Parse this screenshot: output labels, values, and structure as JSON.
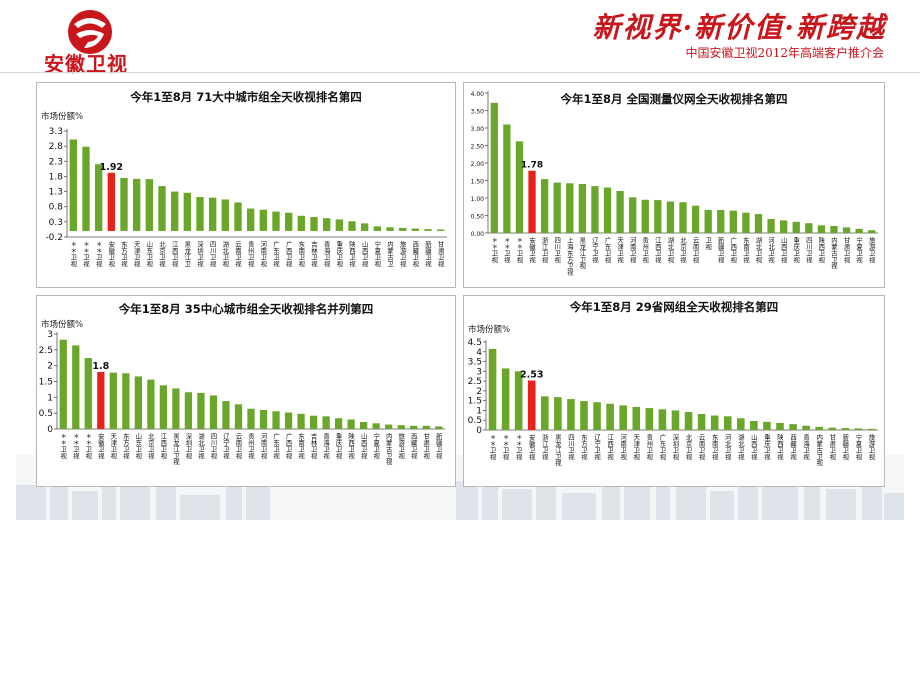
{
  "brand": {
    "logo_text": "安徽卫视",
    "slogan": "新视界·新价值·新跨越",
    "event": "中国安徽卫视2012年高端客户推介会",
    "highlight_color": "#e8221b",
    "bar_color": "#6aa629"
  },
  "chart_data": [
    {
      "type": "bar",
      "title": "今年1至8月  71大中城市组全天收视排名第四",
      "ylabel": "市场份额%",
      "ylim": [
        -0.2,
        3.3
      ],
      "yticks": [
        -0.2,
        0.3,
        0.8,
        1.3,
        1.8,
        2.3,
        2.8,
        3.3
      ],
      "ytick_labels": [
        "-0.2",
        "0.3",
        "0.8",
        "1.3",
        "1.8",
        "2.3",
        "2.8",
        "3.3"
      ],
      "highlight_index": 3,
      "highlight_label": "1.92",
      "categories": [
        "＊＊卫视",
        "＊＊卫视",
        "＊＊卫视",
        "安徽卫视",
        "东方卫视",
        "天津卫视",
        "山东卫视",
        "北京卫视",
        "江西卫视",
        "黑龙江卫",
        "深圳卫视",
        "四川卫视",
        "湖北卫视",
        "云南卫视",
        "贵州卫视",
        "河南卫视",
        "广东卫视",
        "广西卫视",
        "东南卫视",
        "吉林卫视",
        "青海卫视",
        "重庆卫视",
        "陕西卫视",
        "山西卫视",
        "宁夏卫视",
        "内蒙古卫",
        "旅游卫视",
        "西藏卫视",
        "新疆卫视",
        "甘肃卫视"
      ],
      "values": [
        3.02,
        2.78,
        2.2,
        1.92,
        1.75,
        1.72,
        1.71,
        1.48,
        1.3,
        1.26,
        1.12,
        1.1,
        1.04,
        0.94,
        0.74,
        0.7,
        0.64,
        0.6,
        0.5,
        0.46,
        0.42,
        0.38,
        0.32,
        0.25,
        0.15,
        0.12,
        0.1,
        0.08,
        0.06,
        0.05
      ]
    },
    {
      "type": "bar",
      "title": "今年1至8月   全国测量仪网全天收视排名第四",
      "ylim": [
        0,
        4
      ],
      "yticks": [
        0,
        0.5,
        1,
        1.5,
        2,
        2.5,
        3,
        3.5,
        4
      ],
      "ytick_labels": [
        "0.00",
        "0.50",
        "1.00",
        "1.50",
        "2.00",
        "2.50",
        "3.00",
        "3.50",
        "4.00"
      ],
      "highlight_index": 3,
      "highlight_label": "1.78",
      "categories": [
        "＊＊卫视",
        "＊＊卫视",
        "＊＊卫视",
        "安徽卫视",
        "浙江卫视",
        "四川卫视",
        "上海东方卫视",
        "黑龙江卫视",
        "辽宁卫视",
        "广东卫视",
        "天津卫视",
        "河南卫视",
        "贵州卫视",
        "江西卫视",
        "湖北卫视",
        "北京卫视",
        "云南卫视",
        "卫视",
        "新疆卫视",
        "广西卫视",
        "东南卫视",
        "湖北卫视",
        "河北卫视",
        "山西卫视",
        "重庆卫视",
        "四川卫视",
        "陕西卫视",
        "内蒙古卫视",
        "甘肃卫视",
        "宁夏卫视",
        "旅游卫视"
      ],
      "values": [
        3.72,
        3.1,
        2.62,
        1.78,
        1.54,
        1.44,
        1.42,
        1.4,
        1.34,
        1.3,
        1.2,
        1.02,
        0.95,
        0.94,
        0.9,
        0.88,
        0.78,
        0.66,
        0.66,
        0.64,
        0.58,
        0.54,
        0.4,
        0.36,
        0.32,
        0.28,
        0.22,
        0.2,
        0.16,
        0.12,
        0.08
      ]
    },
    {
      "type": "bar",
      "title": "今年1至8月  35中心城市组全天收视排名并列第四",
      "ylabel": "市场份额%",
      "ylim": [
        0,
        3
      ],
      "yticks": [
        0,
        0.5,
        1,
        1.5,
        2,
        2.5,
        3
      ],
      "ytick_labels": [
        "0",
        "0.5",
        "1",
        "1.5",
        "2",
        "2.5",
        "3"
      ],
      "highlight_index": 3,
      "highlight_label": "1.8",
      "categories": [
        "＊＊卫视",
        "＊＊卫视",
        "＊＊卫视",
        "安徽卫视",
        "天津卫视",
        "东方卫视",
        "山东卫视",
        "北京卫视",
        "江西卫视",
        "黑龙江卫视",
        "深圳卫视",
        "湖北卫视",
        "四川卫视",
        "辽宁卫视",
        "云南卫视",
        "贵州卫视",
        "河南卫视",
        "广东卫视",
        "广西卫视",
        "东南卫视",
        "吉林卫视",
        "青海卫视",
        "重庆卫视",
        "陕西卫视",
        "山西卫视",
        "宁夏卫视",
        "内蒙古卫视",
        "旅游卫视",
        "西藏卫视",
        "甘肃卫视",
        "新疆卫视"
      ],
      "values": [
        2.82,
        2.64,
        2.24,
        1.8,
        1.78,
        1.76,
        1.66,
        1.56,
        1.38,
        1.28,
        1.16,
        1.14,
        1.06,
        0.88,
        0.78,
        0.64,
        0.6,
        0.56,
        0.52,
        0.48,
        0.42,
        0.4,
        0.34,
        0.3,
        0.22,
        0.18,
        0.14,
        0.12,
        0.1,
        0.1,
        0.08
      ]
    },
    {
      "type": "bar",
      "title": "今年1至8月   29省网组全天收视排名第四",
      "ylabel": "市场份额%",
      "ylim": [
        0,
        4.5
      ],
      "yticks": [
        0,
        0.5,
        1,
        1.5,
        2,
        2.5,
        3,
        3.5,
        4,
        4.5
      ],
      "ytick_labels": [
        "0",
        "0.5",
        "1",
        "1.5",
        "2",
        "2.5",
        "3",
        "3.5",
        "4",
        "4.5"
      ],
      "highlight_index": 3,
      "highlight_label": "2.53",
      "categories": [
        "＊＊卫视",
        "＊＊卫视",
        "＊＊卫视",
        "安徽卫视",
        "浙江卫视",
        "黑龙江卫视",
        "四川卫视",
        "东方卫视",
        "辽宁卫视",
        "江西卫视",
        "河南卫视",
        "天津卫视",
        "贵州卫视",
        "广东卫视",
        "深圳卫视",
        "北京卫视",
        "云南卫视",
        "东南卫视",
        "河北卫视",
        "湖北卫视",
        "山西卫视",
        "重庆卫视",
        "陕西卫视",
        "西藏卫视",
        "青海卫视",
        "内蒙古卫视",
        "甘肃卫视",
        "新疆卫视",
        "宁夏卫视",
        "旅游卫视"
      ],
      "values": [
        4.15,
        3.15,
        3.0,
        2.53,
        1.72,
        1.68,
        1.58,
        1.48,
        1.42,
        1.34,
        1.26,
        1.18,
        1.12,
        1.06,
        1.0,
        0.92,
        0.82,
        0.74,
        0.7,
        0.6,
        0.46,
        0.42,
        0.36,
        0.3,
        0.22,
        0.16,
        0.12,
        0.1,
        0.08,
        0.06
      ]
    }
  ]
}
